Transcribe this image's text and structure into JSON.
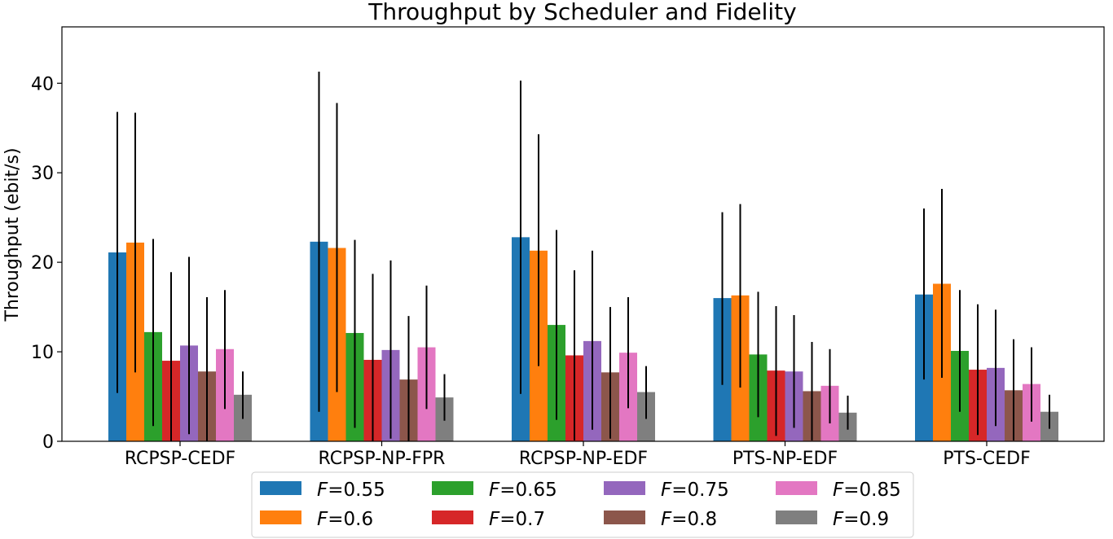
{
  "chart_data": {
    "type": "bar",
    "title": "Throughput by Scheduler and Fidelity",
    "xlabel": "",
    "ylabel": "Throughput (ebit/s)",
    "ylim": [
      0,
      46.3
    ],
    "yticks": [
      0,
      10,
      20,
      30,
      40
    ],
    "categories": [
      "RCPSP-CEDF",
      "RCPSP-NP-FPR",
      "RCPSP-NP-EDF",
      "PTS-NP-EDF",
      "PTS-CEDF"
    ],
    "legend_prefix": "F",
    "legend_placement": "bottom-center",
    "grid": false,
    "series": [
      {
        "name": "=0.55",
        "color": "#1f77b4",
        "values": [
          21.1,
          22.3,
          22.8,
          16.0,
          16.4
        ],
        "err_low": [
          5.4,
          3.3,
          5.3,
          6.3,
          6.9
        ],
        "err_high": [
          36.8,
          41.3,
          40.3,
          25.6,
          26.0
        ]
      },
      {
        "name": "=0.6",
        "color": "#ff7f0e",
        "values": [
          22.2,
          21.6,
          21.3,
          16.3,
          17.6
        ],
        "err_low": [
          7.7,
          5.5,
          8.4,
          6.0,
          7.1
        ],
        "err_high": [
          36.7,
          37.8,
          34.3,
          26.5,
          28.2
        ]
      },
      {
        "name": "=0.65",
        "color": "#2ca02c",
        "values": [
          12.2,
          12.1,
          13.0,
          9.7,
          10.1
        ],
        "err_low": [
          1.7,
          1.5,
          2.4,
          2.7,
          3.3
        ],
        "err_high": [
          22.6,
          22.5,
          23.6,
          16.7,
          16.9
        ]
      },
      {
        "name": "=0.7",
        "color": "#d62728",
        "values": [
          9.0,
          9.1,
          9.6,
          7.9,
          8.0
        ],
        "err_low": [
          0.0,
          0.0,
          0.1,
          0.6,
          0.7
        ],
        "err_high": [
          18.9,
          18.7,
          19.1,
          15.1,
          15.3
        ]
      },
      {
        "name": "=0.75",
        "color": "#9467bd",
        "values": [
          10.7,
          10.2,
          11.2,
          7.8,
          8.2
        ],
        "err_low": [
          0.8,
          0.3,
          1.3,
          1.5,
          1.7
        ],
        "err_high": [
          20.6,
          20.2,
          21.3,
          14.1,
          14.7
        ]
      },
      {
        "name": "=0.8",
        "color": "#8c564b",
        "values": [
          7.8,
          6.9,
          7.7,
          5.6,
          5.7
        ],
        "err_low": [
          0.0,
          0.0,
          0.3,
          0.1,
          0.1
        ],
        "err_high": [
          16.1,
          14.0,
          15.0,
          11.1,
          11.4
        ]
      },
      {
        "name": "=0.85",
        "color": "#e377c2",
        "values": [
          10.3,
          10.5,
          9.9,
          6.2,
          6.4
        ],
        "err_low": [
          3.6,
          3.6,
          3.7,
          2.0,
          2.2
        ],
        "err_high": [
          16.9,
          17.4,
          16.1,
          10.3,
          10.5
        ]
      },
      {
        "name": "=0.9",
        "color": "#7f7f7f",
        "values": [
          5.2,
          4.9,
          5.5,
          3.2,
          3.3
        ],
        "err_low": [
          2.5,
          2.3,
          2.5,
          1.3,
          1.4
        ],
        "err_high": [
          7.8,
          7.5,
          8.4,
          5.1,
          5.2
        ]
      }
    ]
  }
}
